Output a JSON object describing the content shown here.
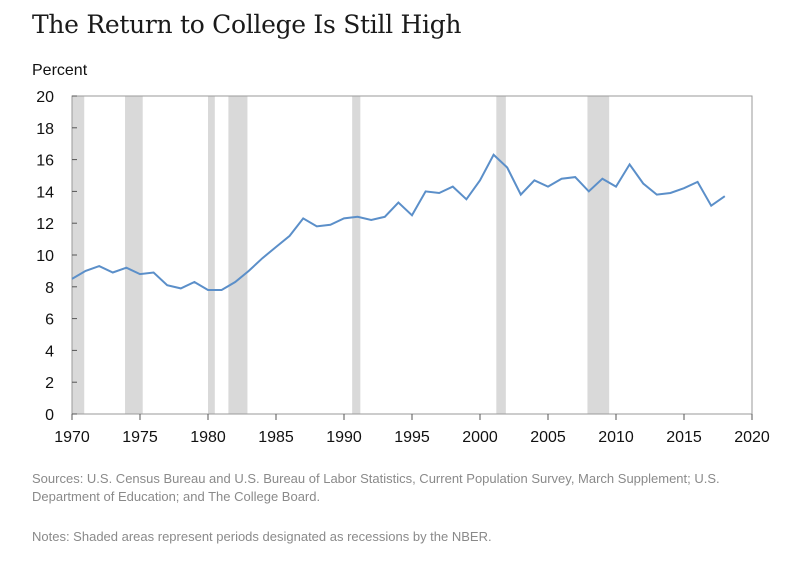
{
  "title": "The Return to College Is Still High",
  "colors": {
    "line": "#5b8fc9",
    "recession": "#d9d9d9",
    "axis": "#9a9a9a"
  },
  "chart_data": {
    "type": "line",
    "ylabel": "Percent",
    "xlim": [
      1970,
      2020
    ],
    "ylim": [
      0,
      20
    ],
    "x_ticks": [
      1970,
      1975,
      1980,
      1985,
      1990,
      1995,
      2000,
      2005,
      2010,
      2015,
      2020
    ],
    "y_ticks": [
      0,
      2,
      4,
      6,
      8,
      10,
      12,
      14,
      16,
      18,
      20
    ],
    "grid": false,
    "recessions": [
      [
        1970.0,
        1970.9
      ],
      [
        1973.9,
        1975.2
      ],
      [
        1980.0,
        1980.5
      ],
      [
        1981.5,
        1982.9
      ],
      [
        1990.6,
        1991.2
      ],
      [
        2001.2,
        2001.9
      ],
      [
        2007.9,
        2009.5
      ]
    ],
    "series": [
      {
        "x": [
          1970,
          1971,
          1972,
          1973,
          1974,
          1975,
          1976,
          1977,
          1978,
          1979,
          1980,
          1981,
          1982,
          1983,
          1984,
          1985,
          1986,
          1987,
          1988,
          1989,
          1990,
          1991,
          1992,
          1993,
          1994,
          1995,
          1996,
          1997,
          1998,
          1999,
          2000,
          2001,
          2002,
          2003,
          2004,
          2005,
          2006,
          2007,
          2008,
          2009,
          2010,
          2011,
          2012,
          2013,
          2014,
          2015,
          2016,
          2017,
          2018
        ],
        "values": [
          8.5,
          9.0,
          9.3,
          8.9,
          9.2,
          8.8,
          8.9,
          8.1,
          7.9,
          8.3,
          7.8,
          7.8,
          8.3,
          9.0,
          9.8,
          10.5,
          11.2,
          12.3,
          11.8,
          11.9,
          12.3,
          12.4,
          12.2,
          12.4,
          13.3,
          12.5,
          14.0,
          13.9,
          14.3,
          13.5,
          14.7,
          16.3,
          15.5,
          13.8,
          14.7,
          14.3,
          14.8,
          14.9,
          14.0,
          14.8,
          14.3,
          15.7,
          14.5,
          13.8,
          13.9,
          14.2,
          14.6,
          13.1,
          13.7
        ]
      }
    ]
  },
  "sources": "Sources: U.S. Census Bureau and U.S. Bureau of Labor Statistics, Current Population Survey, March Supplement; U.S. Department of Education; and The College Board.",
  "notes": "Notes: Shaded areas represent periods designated as recessions by the NBER."
}
